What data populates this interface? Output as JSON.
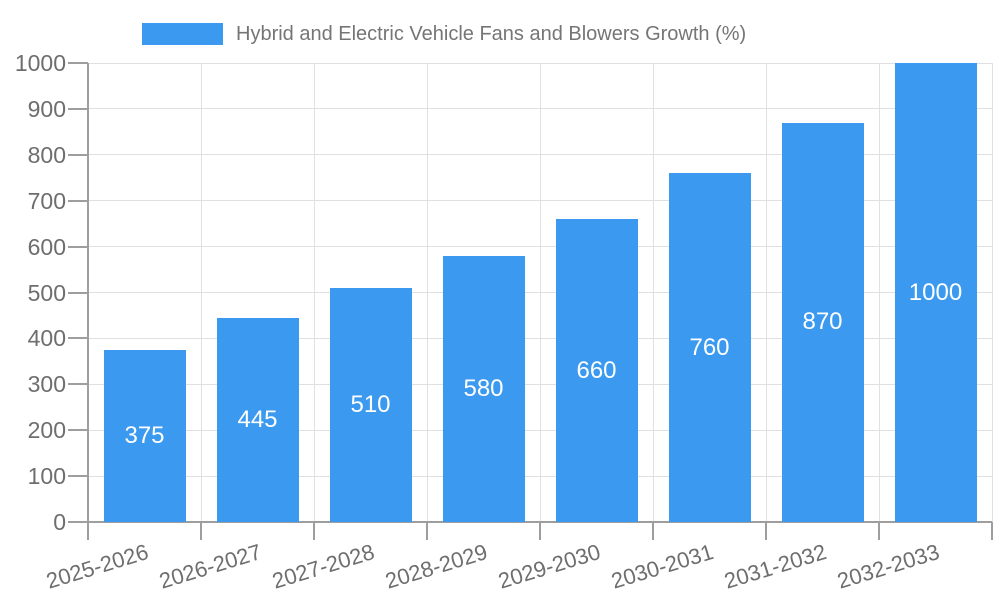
{
  "legend": {
    "label": "Hybrid and Electric Vehicle Fans and Blowers Growth (%)"
  },
  "colors": {
    "bar": "#3b9aef",
    "grid": "#e0e0e0",
    "axis": "#9e9e9e",
    "axis_label": "#6e6e6e",
    "legend_text": "#757575",
    "bar_label": "#ffffff",
    "background": "#ffffff"
  },
  "chart_data": {
    "type": "bar",
    "title": "Hybrid and Electric Vehicle Fans and Blowers Growth (%)",
    "categories": [
      "2025-2026",
      "2026-2027",
      "2027-2028",
      "2028-2029",
      "2029-2030",
      "2030-2031",
      "2031-2032",
      "2032-2033"
    ],
    "values": [
      375,
      445,
      510,
      580,
      660,
      760,
      870,
      1000
    ],
    "value_labels": [
      "375",
      "445",
      "510",
      "580",
      "660",
      "760",
      "870",
      "1000"
    ],
    "xlabel": "",
    "ylabel": "",
    "ylim": [
      0,
      1000
    ],
    "yticks": [
      0,
      100,
      200,
      300,
      400,
      500,
      600,
      700,
      800,
      900,
      1000
    ],
    "ytick_labels": [
      "0",
      "100",
      "200",
      "300",
      "400",
      "500",
      "600",
      "700",
      "800",
      "900",
      "1000"
    ],
    "grid": true,
    "vertical_grid": true,
    "legend_position": "top",
    "x_tick_rotation_deg": -17,
    "value_label_position": "center"
  }
}
